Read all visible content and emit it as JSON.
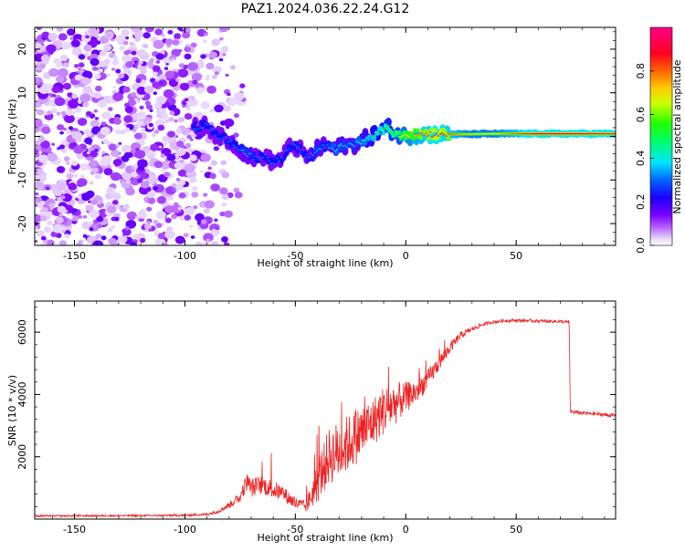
{
  "figure": {
    "title": "PAZ1.2024.036.22.24.G12",
    "colors": {
      "snr_line": "#ee2222",
      "frame": "#000000",
      "background": "#ffffff"
    }
  },
  "chart_data": [
    {
      "type": "heatmap",
      "title": "PAZ1.2024.036.22.24.G12",
      "xlabel": "Height of straight line (km)",
      "ylabel": "Frequency (Hz)",
      "xlim": [
        -168,
        95
      ],
      "ylim": [
        -25,
        25
      ],
      "x_ticks": [
        -150,
        -100,
        -50,
        0,
        50
      ],
      "y_ticks": [
        -20,
        -10,
        0,
        10,
        20
      ],
      "colorbar": {
        "label": "Normalized spectral amplitude",
        "range": [
          0,
          1
        ],
        "ticks": [
          0.0,
          0.2,
          0.4,
          0.6,
          0.8
        ],
        "colormap": "gist_rainbow_r"
      },
      "ridge": {
        "x": [
          -96,
          -90,
          -85,
          -80,
          -76,
          -72,
          -68,
          -64,
          -60,
          -56,
          -52,
          -48,
          -44,
          -40,
          -36,
          -32,
          -28,
          -24,
          -20,
          -16,
          -12,
          -8,
          -4,
          0,
          4,
          8,
          12,
          16,
          20,
          30,
          40,
          50,
          60,
          70,
          80,
          95
        ],
        "y": [
          2,
          2.5,
          0,
          -1,
          -2.5,
          -4,
          -5,
          -4.5,
          -6,
          -5,
          -2,
          -3,
          -5,
          -3,
          -2,
          -3,
          -2,
          -2,
          -1,
          0,
          1,
          2,
          0.5,
          0,
          0.5,
          0.5,
          0.5,
          0.5,
          0.5,
          0.5,
          0.6,
          0.6,
          0.6,
          0.6,
          0.6,
          0.6
        ],
        "amplitude": [
          0.3,
          0.3,
          0.3,
          0.3,
          0.3,
          0.35,
          0.3,
          0.3,
          0.3,
          0.3,
          0.3,
          0.3,
          0.3,
          0.35,
          0.3,
          0.4,
          0.35,
          0.35,
          0.4,
          0.45,
          0.5,
          0.55,
          0.6,
          0.7,
          0.75,
          0.8,
          0.85,
          0.85,
          0.8,
          0.7,
          0.7,
          0.8,
          0.9,
          0.9,
          0.88,
          0.85
        ]
      }
    },
    {
      "type": "line",
      "xlabel": "Height of straight line (km)",
      "ylabel": "SNR (10 * v/v)",
      "xlim": [
        -168,
        95
      ],
      "ylim": [
        0,
        7000
      ],
      "x_ticks": [
        -150,
        -100,
        -50,
        0,
        50
      ],
      "y_ticks": [
        2000,
        4000,
        6000
      ],
      "series": [
        {
          "x": [
            -168,
            -120,
            -100,
            -90,
            -85,
            -80,
            -75,
            -72,
            -70,
            -65,
            -60,
            -55,
            -50,
            -45,
            -40,
            -35,
            -30,
            -25,
            -20,
            -15,
            -10,
            -5,
            0,
            5,
            10,
            15,
            20,
            25,
            30,
            35,
            40,
            45,
            50,
            55,
            60,
            65,
            70,
            74,
            74.5,
            80,
            85,
            90,
            95
          ],
          "values": [
            100,
            110,
            120,
            150,
            250,
            450,
            700,
            1200,
            1000,
            1100,
            950,
            800,
            500,
            400,
            1200,
            2000,
            2200,
            2500,
            2800,
            3100,
            3500,
            3700,
            3900,
            4100,
            4500,
            5000,
            5500,
            5900,
            6100,
            6250,
            6330,
            6370,
            6380,
            6370,
            6360,
            6350,
            6340,
            6320,
            3450,
            3400,
            3380,
            3350,
            3320
          ],
          "noise": [
            30,
            30,
            35,
            40,
            60,
            100,
            180,
            300,
            300,
            300,
            300,
            250,
            200,
            200,
            700,
            900,
            1000,
            900,
            900,
            800,
            800,
            700,
            500,
            400,
            300,
            250,
            180,
            120,
            80,
            60,
            50,
            50,
            50,
            50,
            50,
            50,
            50,
            50,
            60,
            60,
            60,
            60,
            60
          ]
        }
      ]
    }
  ]
}
